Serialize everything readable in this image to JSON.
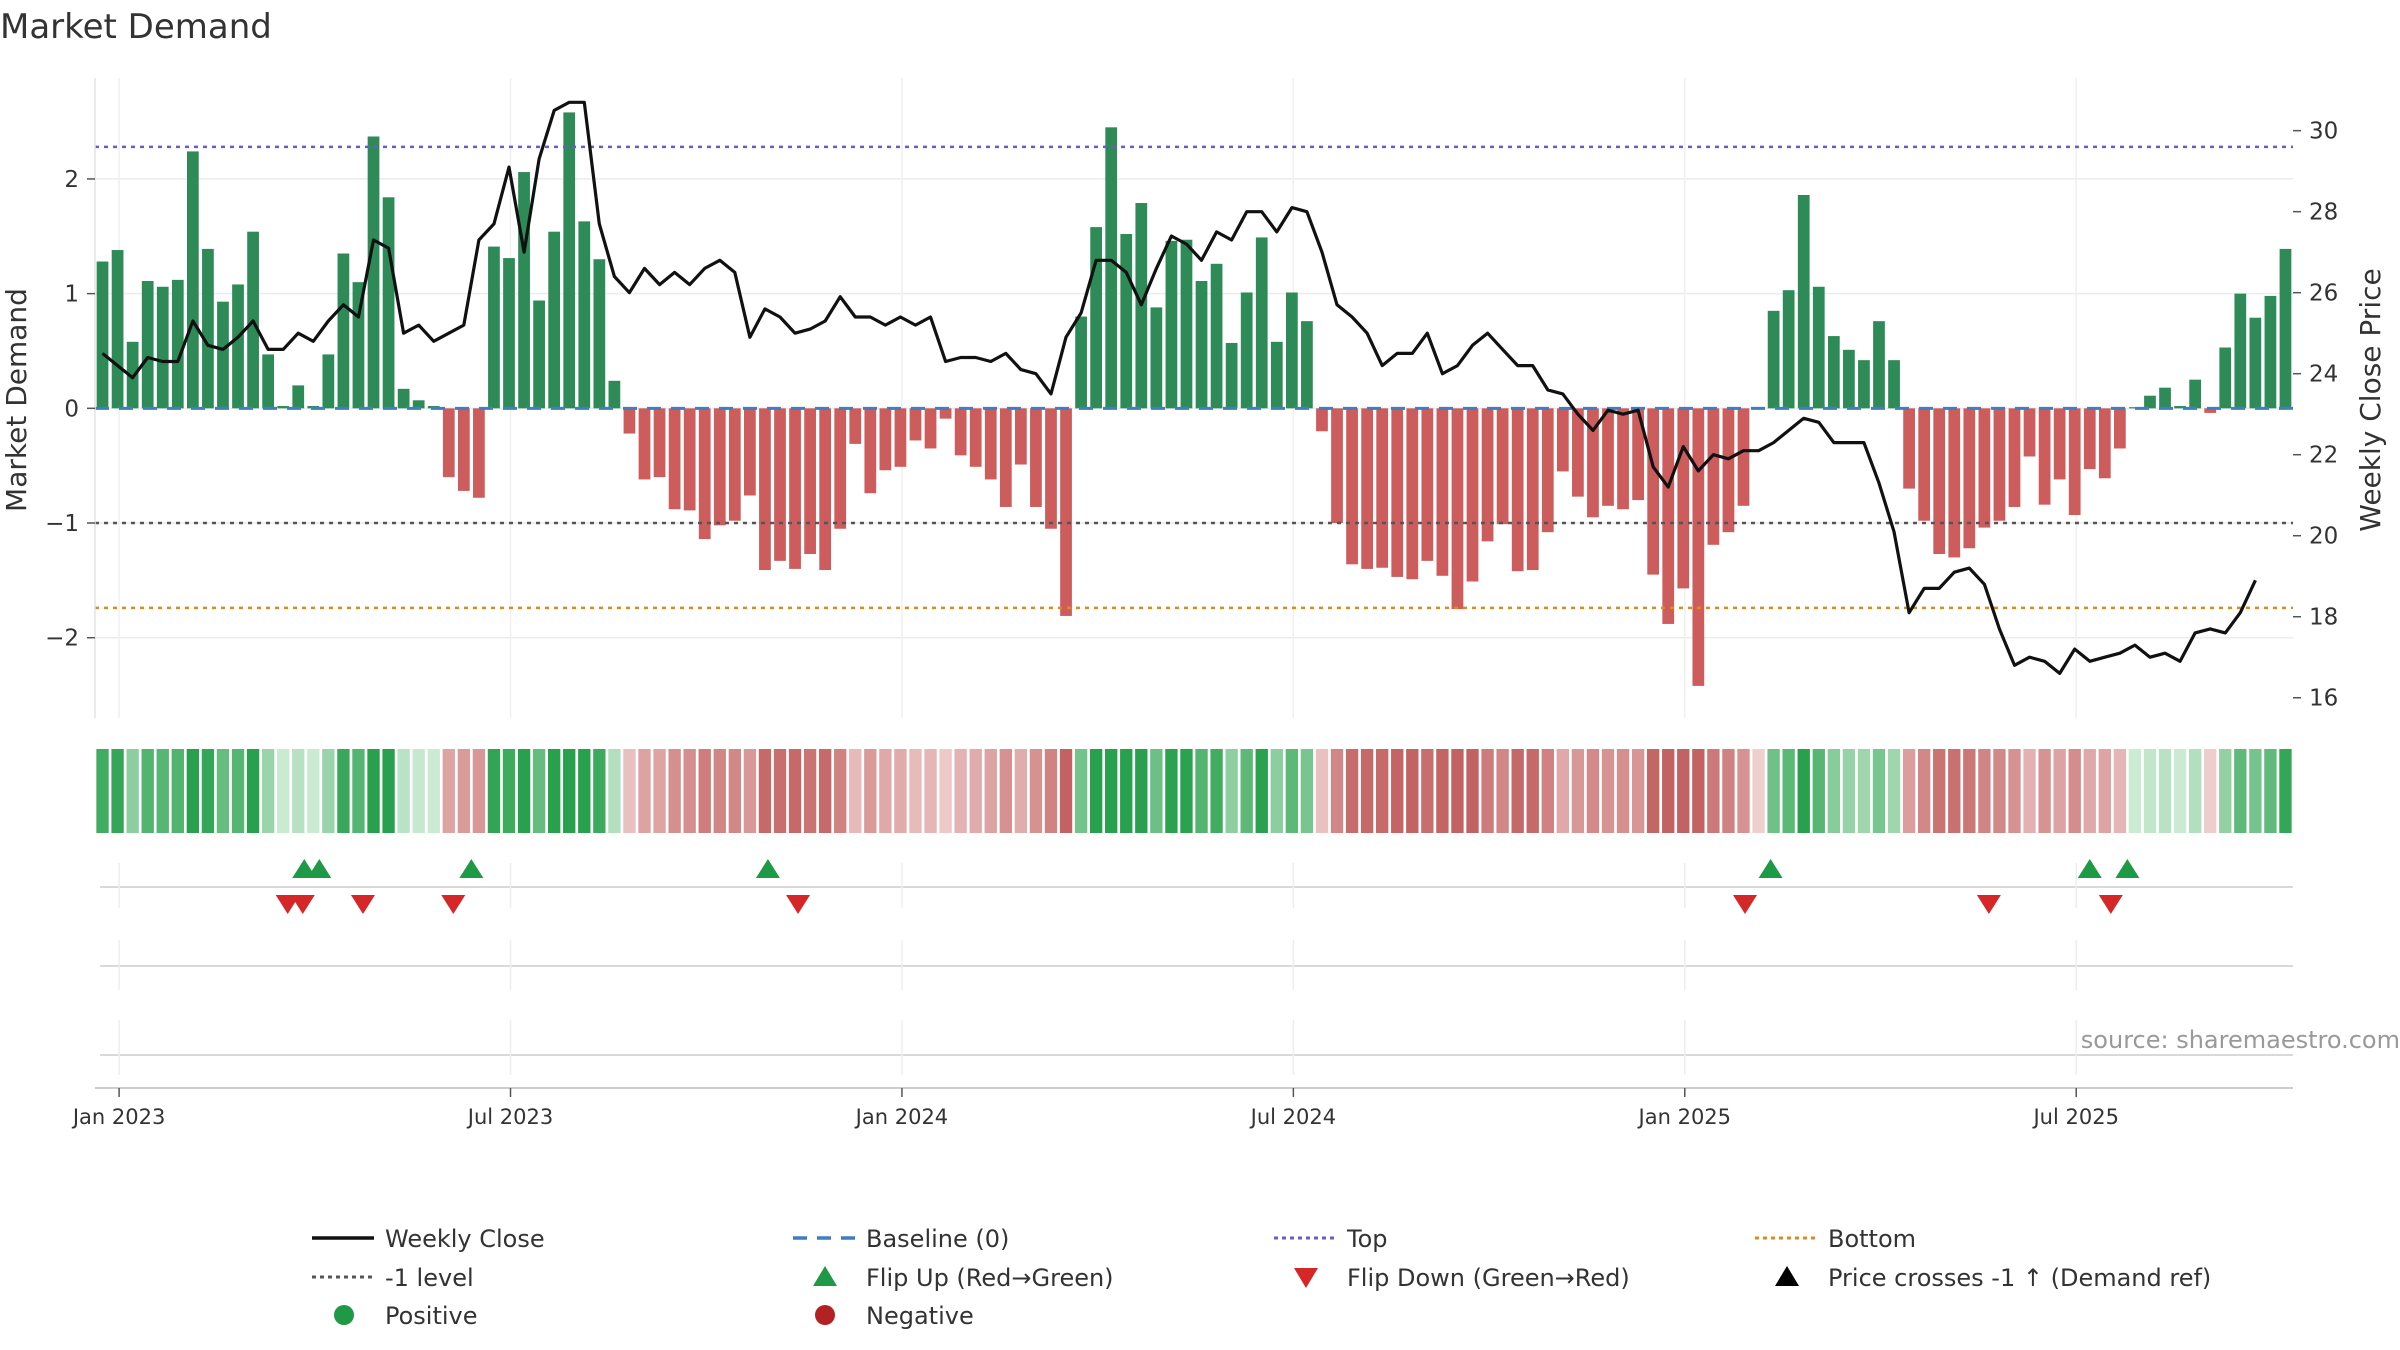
{
  "chart_data": {
    "type": "bar",
    "title": "Market Demand",
    "ylabel": "Market Demand",
    "y2label": "Weekly Close Price",
    "xlabel": "",
    "ylim": [
      -2.7,
      2.88
    ],
    "y2lim": [
      15.5,
      31.3
    ],
    "yticks": [
      2,
      1,
      0,
      -1,
      -2
    ],
    "ytick_labels": [
      "2",
      "1",
      "0",
      "−1",
      "−2"
    ],
    "y2ticks": [
      30,
      28,
      26,
      24,
      22,
      20,
      18,
      16
    ],
    "y2tick_labels": [
      "30",
      "28",
      "26",
      "24",
      "22",
      "20",
      "18",
      "16"
    ],
    "x_start": "2022-12-23",
    "x_end": "2025-10-03",
    "xticks": [
      "Jan 2023",
      "Jul 2023",
      "Jan 2024",
      "Jul 2024",
      "Jan 2025",
      "Jul 2025"
    ],
    "xtick_weeks": [
      1.1,
      27.1,
      53.1,
      79.1,
      105.1,
      131.1
    ],
    "reference_lines": {
      "top": 2.28,
      "bottom": -1.74,
      "minus_one": -1,
      "baseline": 0
    },
    "weeks": 144,
    "demand": [
      1.28,
      1.38,
      0.58,
      1.11,
      1.06,
      1.12,
      2.24,
      1.39,
      0.93,
      1.08,
      1.54,
      0.47,
      0.02,
      0.2,
      0.02,
      0.47,
      1.35,
      1.1,
      2.37,
      1.84,
      0.17,
      0.07,
      0.02,
      -0.6,
      -0.72,
      -0.78,
      1.41,
      1.31,
      2.06,
      0.94,
      1.54,
      2.58,
      1.63,
      1.3,
      0.24,
      -0.22,
      -0.62,
      -0.6,
      -0.88,
      -0.89,
      -1.14,
      -1.02,
      -0.98,
      -0.76,
      -1.41,
      -1.33,
      -1.4,
      -1.27,
      -1.41,
      -1.05,
      -0.31,
      -0.74,
      -0.54,
      -0.51,
      -0.28,
      -0.35,
      -0.09,
      -0.41,
      -0.51,
      -0.62,
      -0.86,
      -0.49,
      -0.86,
      -1.05,
      -1.81,
      0.8,
      1.58,
      2.45,
      1.52,
      1.79,
      0.88,
      1.46,
      1.47,
      1.11,
      1.26,
      0.57,
      1.01,
      1.49,
      0.58,
      1.01,
      0.76,
      -0.2,
      -1.0,
      -1.36,
      -1.4,
      -1.39,
      -1.47,
      -1.49,
      -1.33,
      -1.46,
      -1.75,
      -1.51,
      -1.16,
      -1.01,
      -1.42,
      -1.41,
      -1.08,
      -0.55,
      -0.77,
      -0.95,
      -0.85,
      -0.88,
      -0.8,
      -1.45,
      -1.88,
      -1.57,
      -2.42,
      -1.19,
      -1.08,
      -0.85,
      -0.01,
      0.85,
      1.03,
      1.86,
      1.06,
      0.63,
      0.51,
      0.42,
      0.76,
      0.42,
      -0.7,
      -0.98,
      -1.27,
      -1.3,
      -1.22,
      -1.04,
      -0.98,
      -0.86,
      -0.42,
      -0.84,
      -0.62,
      -0.93,
      -0.53,
      -0.61,
      -0.35,
      0.01,
      0.11,
      0.18,
      0.02,
      0.25,
      -0.04,
      0.53,
      1.0,
      0.79,
      0.98,
      1.39
    ],
    "weekly_close": [
      24.5,
      24.2,
      23.9,
      24.4,
      24.3,
      24.3,
      25.3,
      24.7,
      24.6,
      24.9,
      25.3,
      24.6,
      24.6,
      25.0,
      24.8,
      25.3,
      25.7,
      25.4,
      27.3,
      27.1,
      25.0,
      25.2,
      24.8,
      25.0,
      25.2,
      27.3,
      27.7,
      29.1,
      27.0,
      29.3,
      30.5,
      30.7,
      30.7,
      27.7,
      26.4,
      26.0,
      26.6,
      26.2,
      26.5,
      26.2,
      26.6,
      26.8,
      26.5,
      24.9,
      25.6,
      25.4,
      25.0,
      25.1,
      25.3,
      25.9,
      25.4,
      25.4,
      25.2,
      25.4,
      25.2,
      25.4,
      24.3,
      24.4,
      24.4,
      24.3,
      24.5,
      24.1,
      24.0,
      23.5,
      24.9,
      25.5,
      26.8,
      26.8,
      26.5,
      25.7,
      26.6,
      27.4,
      27.2,
      26.8,
      27.5,
      27.3,
      28.0,
      28.0,
      27.5,
      28.1,
      28.0,
      27.0,
      25.7,
      25.4,
      25.0,
      24.2,
      24.5,
      24.5,
      25.0,
      24.0,
      24.2,
      24.7,
      25.0,
      24.6,
      24.2,
      24.2,
      23.6,
      23.5,
      23.0,
      22.6,
      23.1,
      23.0,
      23.1,
      21.7,
      21.2,
      22.2,
      21.6,
      22.0,
      21.9,
      22.1,
      22.1,
      22.3,
      22.6,
      22.9,
      22.8,
      22.3,
      22.3,
      22.3,
      21.3,
      20.1,
      18.1,
      18.7,
      18.7,
      19.1,
      19.2,
      18.8,
      17.7,
      16.8,
      17.0,
      16.9,
      16.6,
      17.2,
      16.9,
      17.0,
      17.1,
      17.3,
      17.0,
      17.1,
      16.9,
      17.6,
      17.7,
      17.6,
      18.1,
      18.9
    ],
    "flip_up_weeks": [
      13.4,
      14.4,
      24.5,
      44.2,
      110.8,
      132.0,
      134.5
    ],
    "flip_down_weeks": [
      12.3,
      13.3,
      17.3,
      23.3,
      46.2,
      109.1,
      125.3,
      133.4
    ],
    "source_text": "source: sharemaestro.com",
    "legend": [
      {
        "label": "Weekly Close",
        "kind": "line",
        "color": "#111111"
      },
      {
        "label": "Baseline (0)",
        "kind": "dash",
        "color": "#3d7fc1"
      },
      {
        "label": "Top",
        "kind": "dot",
        "color": "#6a5acd"
      },
      {
        "label": "Bottom",
        "kind": "dot",
        "color": "#e08a1e"
      },
      {
        "label": "-1 level",
        "kind": "dot",
        "color": "#555555"
      },
      {
        "label": "Flip Up (Red→Green)",
        "kind": "tri-up",
        "color": "#1e9a46"
      },
      {
        "label": "Flip Down (Green→Red)",
        "kind": "tri-down",
        "color": "#d62728"
      },
      {
        "label": "Price crosses -1 ↑ (Demand ref)",
        "kind": "tri-up",
        "color": "#000000"
      },
      {
        "label": "Positive",
        "kind": "circle",
        "color": "#1e9a46"
      },
      {
        "label": "Negative",
        "kind": "circle",
        "color": "#b22222"
      }
    ],
    "colors": {
      "positive_bar": "#2e8b57",
      "negative_bar": "#cd5c5c",
      "price_line": "#111111"
    }
  }
}
